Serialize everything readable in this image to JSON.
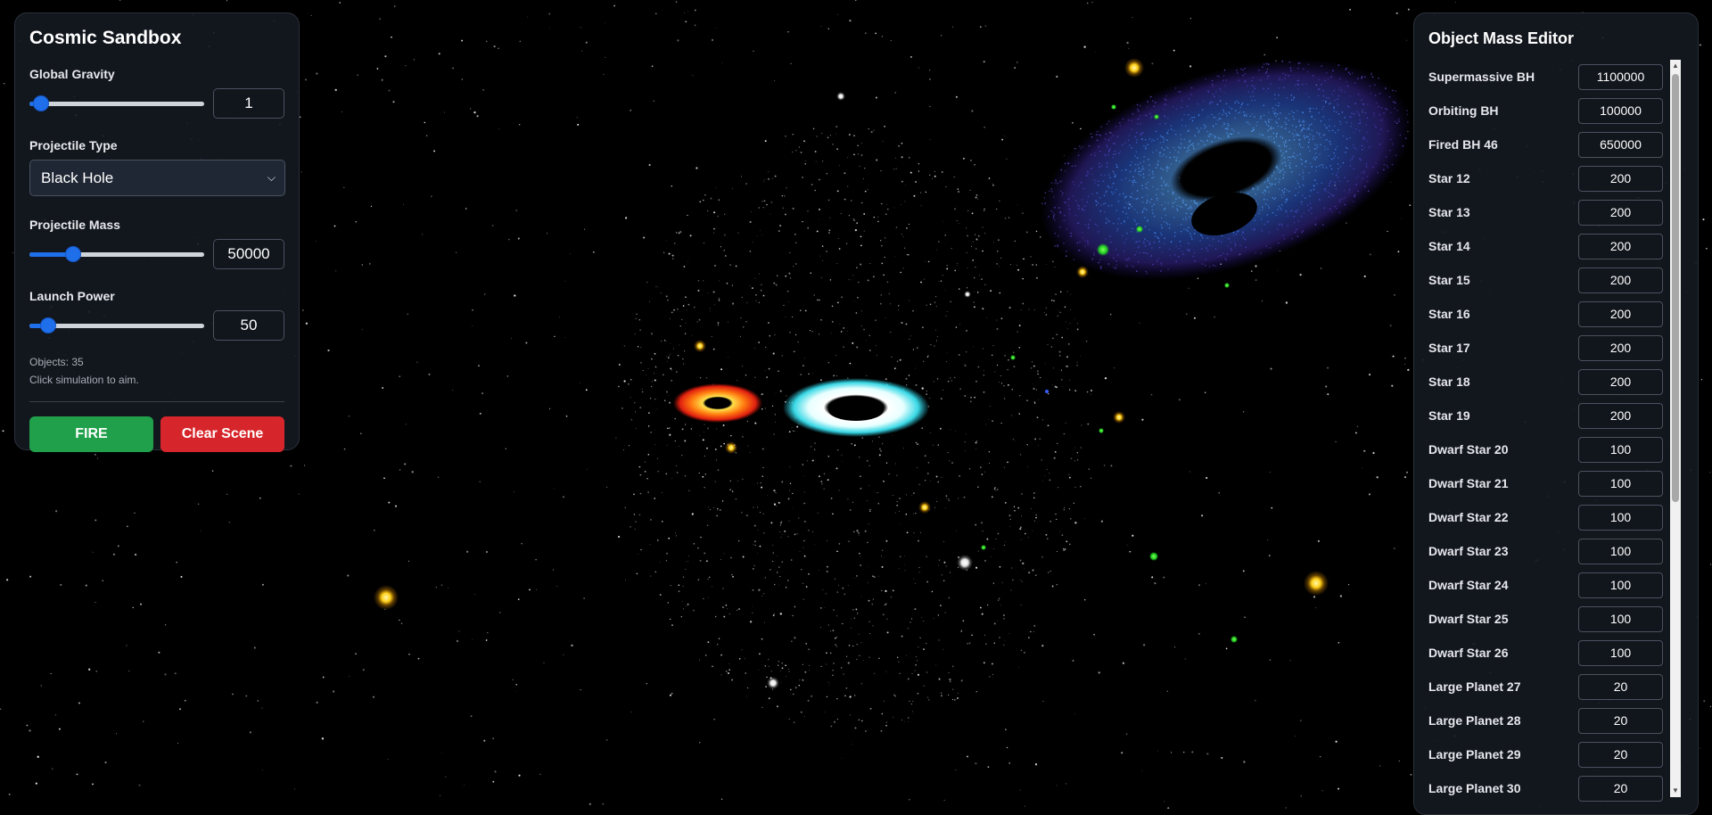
{
  "control_panel": {
    "title": "Cosmic Sandbox",
    "gravity": {
      "label": "Global Gravity",
      "value": "1",
      "fraction": 0.03
    },
    "projectile_type": {
      "label": "Projectile Type",
      "selected": "Black Hole"
    },
    "projectile_mass": {
      "label": "Projectile Mass",
      "value": "50000",
      "fraction": 0.23
    },
    "launch_power": {
      "label": "Launch Power",
      "value": "50",
      "fraction": 0.07
    },
    "objects_text": "Objects: 35",
    "hint_text": "Click simulation to aim.",
    "fire_label": "FIRE",
    "clear_label": "Clear Scene"
  },
  "mass_editor": {
    "title": "Object Mass Editor",
    "objects": [
      {
        "name": "Supermassive BH",
        "mass": "1100000"
      },
      {
        "name": "Orbiting BH",
        "mass": "100000"
      },
      {
        "name": "Fired BH 46",
        "mass": "650000"
      },
      {
        "name": "Star 12",
        "mass": "200"
      },
      {
        "name": "Star 13",
        "mass": "200"
      },
      {
        "name": "Star 14",
        "mass": "200"
      },
      {
        "name": "Star 15",
        "mass": "200"
      },
      {
        "name": "Star 16",
        "mass": "200"
      },
      {
        "name": "Star 17",
        "mass": "200"
      },
      {
        "name": "Star 18",
        "mass": "200"
      },
      {
        "name": "Star 19",
        "mass": "200"
      },
      {
        "name": "Dwarf Star 20",
        "mass": "100"
      },
      {
        "name": "Dwarf Star 21",
        "mass": "100"
      },
      {
        "name": "Dwarf Star 22",
        "mass": "100"
      },
      {
        "name": "Dwarf Star 23",
        "mass": "100"
      },
      {
        "name": "Dwarf Star 24",
        "mass": "100"
      },
      {
        "name": "Dwarf Star 25",
        "mass": "100"
      },
      {
        "name": "Dwarf Star 26",
        "mass": "100"
      },
      {
        "name": "Large Planet 27",
        "mass": "20"
      },
      {
        "name": "Large Planet 28",
        "mass": "20"
      },
      {
        "name": "Large Planet 29",
        "mass": "20"
      },
      {
        "name": "Large Planet 30",
        "mass": "20"
      }
    ]
  },
  "colors": {
    "accent": "#1f6feb",
    "fire": "#21a04b",
    "clear": "#d7262b",
    "panel_bg": "#141820"
  }
}
